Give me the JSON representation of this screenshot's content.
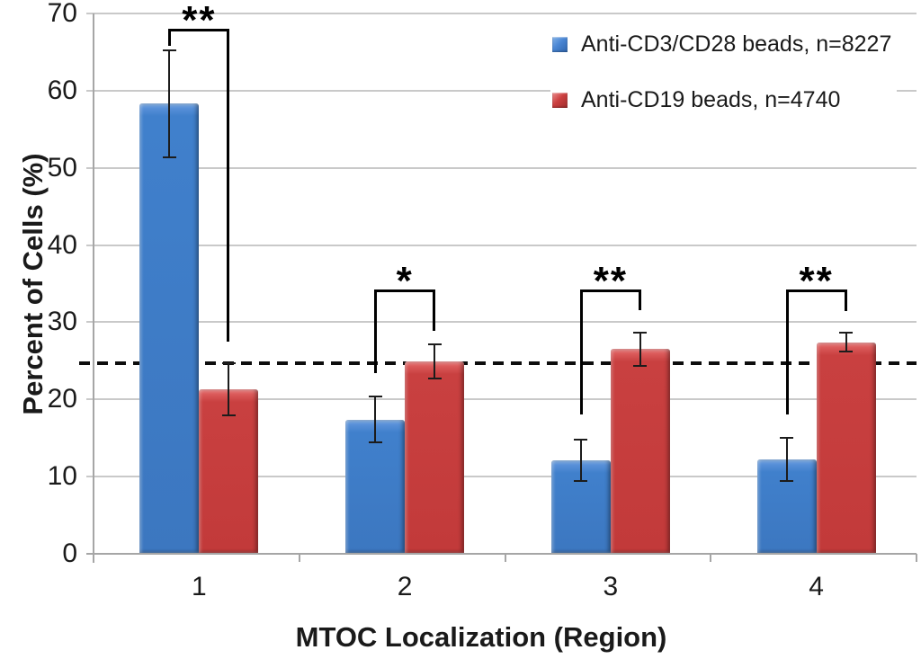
{
  "chart_data": {
    "type": "bar",
    "title": "",
    "xlabel": "MTOC Localization (Region)",
    "ylabel": "Percent of Cells (%)",
    "ylim": [
      0,
      70
    ],
    "yticks": [
      0,
      10,
      20,
      30,
      40,
      50,
      60,
      70
    ],
    "categories": [
      "1",
      "2",
      "3",
      "4"
    ],
    "series": [
      {
        "name": "Anti-CD3/CD28 beads, n=8227",
        "color": "#3E7CC8",
        "values": [
          58.3,
          17.4,
          12.1,
          12.2
        ],
        "errors": [
          6.9,
          3.0,
          2.7,
          2.8
        ]
      },
      {
        "name": "Anti-CD19 beads, n=4740",
        "color": "#C83C3C",
        "values": [
          21.3,
          24.9,
          26.5,
          27.4
        ],
        "errors": [
          3.4,
          2.2,
          2.2,
          1.2
        ]
      }
    ],
    "reference_line": {
      "value": 24.75,
      "style": "dashed",
      "color": "#000000"
    },
    "annotations": [
      {
        "category": "1",
        "label": "**",
        "top_value": 68.0,
        "left_drop_value": 65.8,
        "right_drop_value": 27.5
      },
      {
        "category": "2",
        "label": "*",
        "top_value": 34.2,
        "left_drop_value": 23.4,
        "right_drop_value": 28.9
      },
      {
        "category": "3",
        "label": "**",
        "top_value": 34.2,
        "left_drop_value": 18.1,
        "right_drop_value": 31.6
      },
      {
        "category": "4",
        "label": "**",
        "top_value": 34.2,
        "left_drop_value": 18.1,
        "right_drop_value": 31.4
      }
    ],
    "legend_position": "top-right",
    "grid": true,
    "gridline_color": "#C9C9C9",
    "axis_color": "#A6A6A6",
    "background_color": "#FFFFFF"
  }
}
